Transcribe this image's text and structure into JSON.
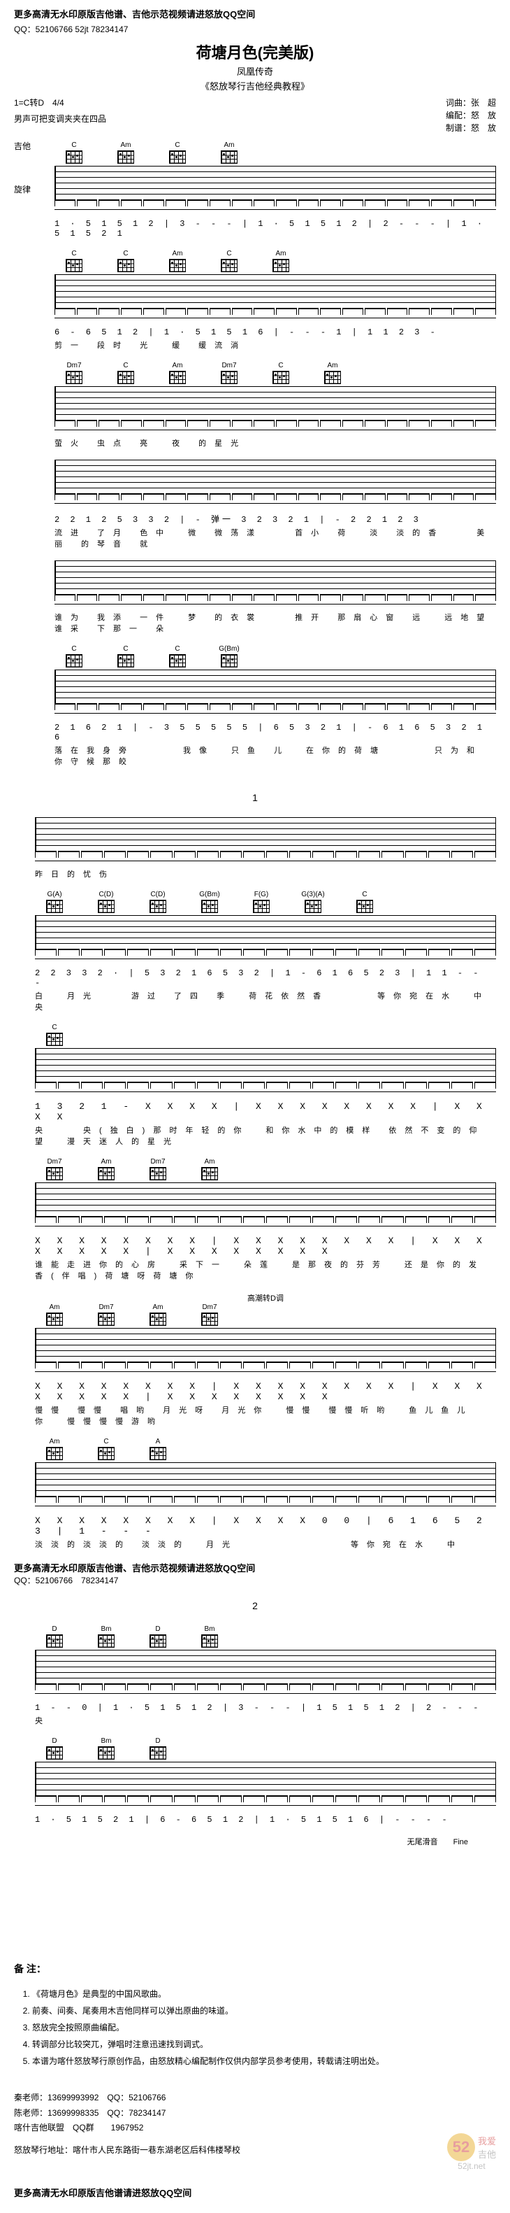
{
  "header": {
    "notice": "更多高清无水印原版吉他谱、吉他示范视频请进怒放QQ空间",
    "qq_line": "QQ：52106766 52jt 78234147"
  },
  "title": {
    "main": "荷塘月色(完美版)",
    "subtitle": "凤凰传奇",
    "source": "《怒放琴行吉他经典教程》"
  },
  "meta": {
    "key": "1=C转D",
    "time": "4/4",
    "voice_note": "男声可把变调夹夹在四品",
    "credits": {
      "lyrics": "词曲：张　超",
      "arrange": "编配：怒　放",
      "tab": "制谱：怒　放"
    }
  },
  "track_labels": {
    "guitar": "吉他",
    "melody": "旋律"
  },
  "systems": [
    {
      "chords": [
        "C",
        "Am",
        "C",
        "Am"
      ],
      "numbers": "1 · 5 1 5 1 2 | 3 - - - | 1 · 5 1 5 1 2 | 2 - - - | 1 · 5 1 5 2 1",
      "lyrics": ""
    },
    {
      "chords": [
        "C",
        "C",
        "Am",
        "C",
        "Am"
      ],
      "numbers": "6 - 6 5 1 2 | 1 · 5 1 5 1 6 | - - - 1 | 1  1 2 3 -",
      "lyrics": "剪一 段时 光　缓 缓流淌"
    },
    {
      "chords": [
        "Dm7",
        "C",
        "Am",
        "Dm7",
        "C",
        "Am"
      ],
      "numbers": "",
      "lyrics": "萤火 虫点 亮　夜 的星光"
    },
    {
      "chords": [],
      "numbers": "2 2  1 2  5 3 3 2 | - 弹一 3 2 3 2 1 | - 2 2  1 2 3",
      "lyrics": "流进 了月 色中　微 微荡漾　　首小 荷　淡 淡的香　　美丽 的琴音 就"
    },
    {
      "chords": [],
      "numbers": "",
      "lyrics": "谁为 我添 一件　梦 的衣裳　　推开 那扇心窗 远　远地望　　谁采 下那一 朵"
    },
    {
      "chords": [
        "C",
        "C",
        "C",
        "G(Bm)"
      ],
      "numbers": "2 1 6 2 1 | - 3 5  5 5 5 5 | 6 5 3 2 1 | - 6 1 6 5 3 2 1 6",
      "lyrics": "落在我身旁　　　我像　只鱼 儿　在你的荷塘　　　只为和你守候那皎"
    },
    {
      "chords": [],
      "numbers": "",
      "lyrics": "昨日的忧伤"
    },
    {
      "chords": [
        "G(A)",
        "C(D)",
        "C(D)",
        "G(Bm)",
        "F(G)",
        "G(3)(A)",
        "C"
      ],
      "numbers": "2  2 3 3 2 · | 5 3 2 1  6 5 3 2 | 1 - 6 1 6 5 2 3 | 1  1 - - -",
      "lyrics": "白　月光　　游过 了四 季　荷花依然香　　　等你宛在水　中　央"
    },
    {
      "chords": [
        "C"
      ],
      "numbers": "1  3 2 1 -  X X X X | X X X X X X X X | X X X X",
      "lyrics": "央　　央(独白)那时年轻的你　和你水中的模样 依然不变的仰望　漫天迷人的星光"
    },
    {
      "chords": [
        "Dm7",
        "Am",
        "Dm7",
        "Am"
      ],
      "numbers": "X X X X X X X X | X X X X X X X X | X X X X X X X X | X X X X X X X X",
      "lyrics": "谁能走进你的心房　采下一　朵莲　是那夜的芬芳　还是你的发香(伴唱)荷塘呀荷塘你"
    },
    {
      "chords": [
        "Am",
        "Dm7",
        "Am",
        "Dm7"
      ],
      "numbers": "X X X X X X X X | X X X X X X X X | X X X X X X X X | X X X X X X X X",
      "lyrics": "慢慢 慢慢 唱哟 月光呀 月光你　慢慢 慢慢听哟　鱼儿鱼儿 你　慢慢慢慢游哟"
    },
    {
      "chords": [
        "Am",
        "C",
        "A"
      ],
      "numbers": "X X X X X X X X | X X X X 0 0 | 6 1 6 5 2 3 | 1 - - -",
      "lyrics": "淡淡的淡淡的 淡淡的　月光　　　　　　　等你宛在水　中"
    },
    {
      "chords": [
        "D",
        "Bm",
        "D",
        "Bm"
      ],
      "numbers": "1 - - 0 | 1 · 5 1 5 1 2 | 3 - - - | 1  5 1 5 1 2 | 2 - - -",
      "lyrics": "央"
    },
    {
      "chords": [
        "D",
        "Bm",
        "D"
      ],
      "numbers": "1 · 5 1 5 2 1 | 6 - 6 5 1 2 | 1 · 5 1 5 1 6 | - - - -",
      "lyrics": ""
    }
  ],
  "special": {
    "modulation": "高潮转D调",
    "slide": "无尾滑音",
    "fine": "Fine"
  },
  "page_numbers": [
    "1",
    "2"
  ],
  "mid_notice": {
    "text": "更多高清无水印原版吉他谱、吉他示范视频请进怒放QQ空间",
    "qq": "QQ：52106766　78234147"
  },
  "notes": {
    "title": "备 注：",
    "items": [
      "《荷塘月色》是典型的中国风歌曲。",
      "前奏、间奏、尾奏用木吉他同样可以弹出原曲的味道。",
      "怒放完全按照原曲编配。",
      "转调部分比较突兀，弹唱时注意迅速找到调式。",
      "本谱为喀什怒放琴行原创作品，由怒放精心编配制作仅供内部学员参考使用，转载请注明出处。"
    ]
  },
  "contacts": {
    "teacher1": "秦老师：13699993992　QQ：52106766",
    "teacher2": "陈老师：13699998335　QQ：78234147",
    "group": "喀什吉他联盟　QQ群　　1967952",
    "address": "怒放琴行地址：喀什市人民东路街一巷东湖老区后科伟楼琴校"
  },
  "watermark": {
    "num": "52",
    "love": "我爱",
    "guitar": "吉他",
    "url": "52jt.net"
  },
  "footer": {
    "text": "更多高清无水印原版吉他谱请进怒放QQ空间"
  },
  "colors": {
    "bg": "#ffffff",
    "text": "#000000",
    "wm_yellow": "#e8b030",
    "wm_red": "#d04040",
    "wm_gray": "#888888"
  }
}
